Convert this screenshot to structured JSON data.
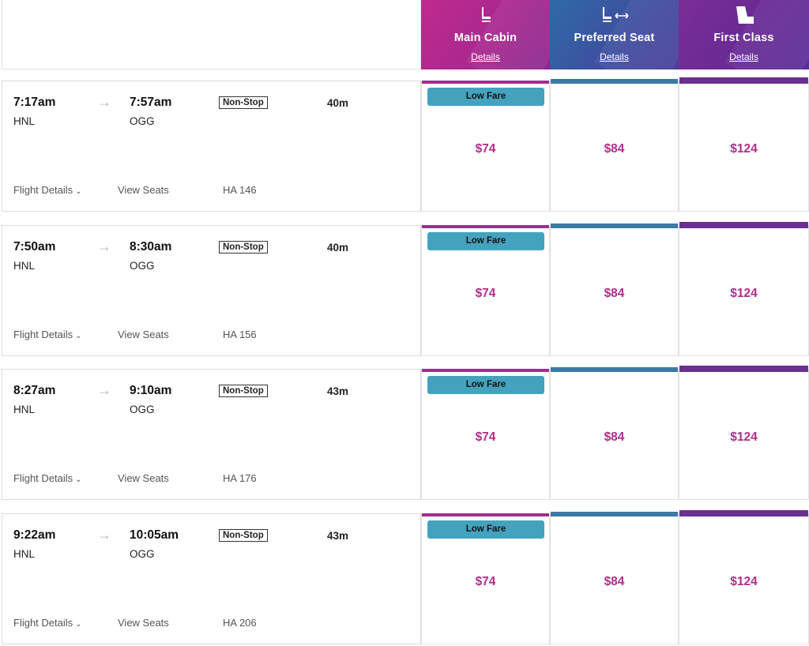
{
  "cabins": [
    {
      "name": "Main Cabin",
      "details": "Details",
      "icon": "seat-icon",
      "color": "#b12d8b"
    },
    {
      "name": "Preferred Seat",
      "details": "Details",
      "icon": "seat-extra-legroom-icon",
      "color": "#3a7aa5"
    },
    {
      "name": "First Class",
      "details": "Details",
      "icon": "recliner-seat-icon",
      "color": "#6b2e91"
    }
  ],
  "flights": [
    {
      "depart_time": "7:17am",
      "depart_airport": "HNL",
      "arrive_time": "7:57am",
      "arrive_airport": "OGG",
      "stops": "Non-Stop",
      "duration": "40m",
      "flight_details": "Flight Details",
      "view_seats": "View Seats",
      "flight_number": "HA 146",
      "badge": "Low Fare",
      "prices": [
        "$74",
        "$84",
        "$124"
      ]
    },
    {
      "depart_time": "7:50am",
      "depart_airport": "HNL",
      "arrive_time": "8:30am",
      "arrive_airport": "OGG",
      "stops": "Non-Stop",
      "duration": "40m",
      "flight_details": "Flight Details",
      "view_seats": "View Seats",
      "flight_number": "HA 156",
      "badge": "Low Fare",
      "prices": [
        "$74",
        "$84",
        "$124"
      ]
    },
    {
      "depart_time": "8:27am",
      "depart_airport": "HNL",
      "arrive_time": "9:10am",
      "arrive_airport": "OGG",
      "stops": "Non-Stop",
      "duration": "43m",
      "flight_details": "Flight Details",
      "view_seats": "View Seats",
      "flight_number": "HA 176",
      "badge": "Low Fare",
      "prices": [
        "$74",
        "$84",
        "$124"
      ]
    },
    {
      "depart_time": "9:22am",
      "depart_airport": "HNL",
      "arrive_time": "10:05am",
      "arrive_airport": "OGG",
      "stops": "Non-Stop",
      "duration": "43m",
      "flight_details": "Flight Details",
      "view_seats": "View Seats",
      "flight_number": "HA 206",
      "badge": "Low Fare",
      "prices": [
        "$74",
        "$84",
        "$124"
      ]
    }
  ]
}
